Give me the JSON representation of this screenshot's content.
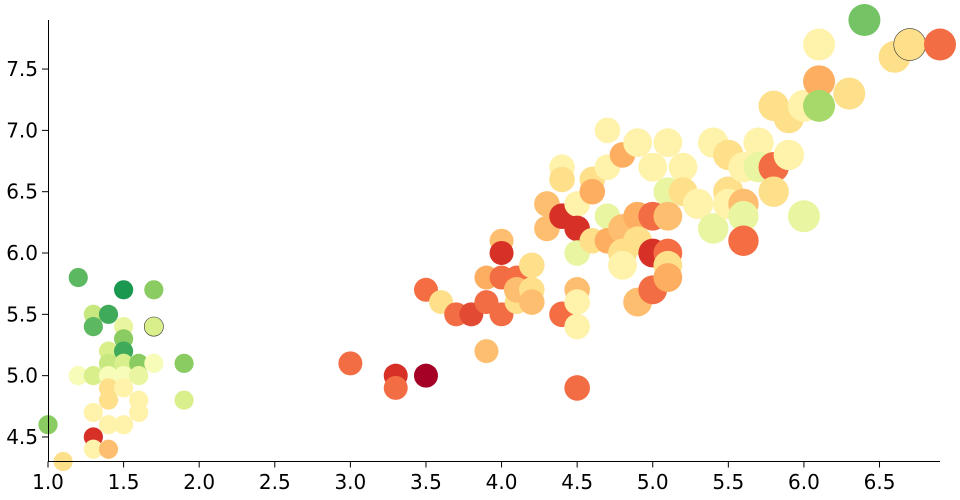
{
  "chart_data": {
    "type": "scatter",
    "title": "",
    "xlabel": "",
    "ylabel": "",
    "xlim": [
      1.0,
      6.9
    ],
    "ylim": [
      4.3,
      7.9
    ],
    "x_ticks": [
      "1.0",
      "1.5",
      "2.0",
      "2.5",
      "3.0",
      "3.5",
      "4.0",
      "4.5",
      "5.0",
      "5.5",
      "6.0",
      "6.5"
    ],
    "y_ticks": [
      "4.5",
      "5.0",
      "5.5",
      "6.0",
      "6.5",
      "7.0",
      "7.5"
    ],
    "grid": false,
    "legend": "none",
    "encoding": {
      "x": "x",
      "y": "y",
      "size": "size (relative value shown by marker radius)",
      "color": "color (diverging red-yellow-green scale)"
    },
    "points": [
      {
        "x": 1.0,
        "y": 4.6,
        "s": 0.6,
        "c": "#8acc62"
      },
      {
        "x": 1.1,
        "y": 4.3,
        "s": 0.6,
        "c": "#fee08b"
      },
      {
        "x": 1.2,
        "y": 5.8,
        "s": 0.6,
        "c": "#5db961"
      },
      {
        "x": 1.2,
        "y": 5.0,
        "s": 0.6,
        "c": "#f7fcb9"
      },
      {
        "x": 1.3,
        "y": 5.5,
        "s": 0.6,
        "c": "#c7e77f"
      },
      {
        "x": 1.3,
        "y": 5.4,
        "s": 0.6,
        "c": "#5db961"
      },
      {
        "x": 1.3,
        "y": 5.0,
        "s": 0.6,
        "c": "#d9ef8b"
      },
      {
        "x": 1.3,
        "y": 4.7,
        "s": 0.6,
        "c": "#fff2aa"
      },
      {
        "x": 1.3,
        "y": 4.5,
        "s": 0.6,
        "c": "#d73027"
      },
      {
        "x": 1.3,
        "y": 4.4,
        "s": 0.6,
        "c": "#fff2aa"
      },
      {
        "x": 1.4,
        "y": 5.5,
        "s": 0.6,
        "c": "#3faa59"
      },
      {
        "x": 1.4,
        "y": 5.2,
        "s": 0.6,
        "c": "#d9ef8b"
      },
      {
        "x": 1.4,
        "y": 5.1,
        "s": 0.6,
        "c": "#c7e77f"
      },
      {
        "x": 1.4,
        "y": 5.0,
        "s": 0.6,
        "c": "#f7fcb9"
      },
      {
        "x": 1.4,
        "y": 4.9,
        "s": 0.6,
        "c": "#fee08b"
      },
      {
        "x": 1.4,
        "y": 4.8,
        "s": 0.6,
        "c": "#fee08b"
      },
      {
        "x": 1.4,
        "y": 4.6,
        "s": 0.6,
        "c": "#fff2aa"
      },
      {
        "x": 1.4,
        "y": 4.4,
        "s": 0.6,
        "c": "#fdbf6f"
      },
      {
        "x": 1.5,
        "y": 5.7,
        "s": 0.6,
        "c": "#1a9850"
      },
      {
        "x": 1.5,
        "y": 5.4,
        "s": 0.6,
        "c": "#e9f5a0"
      },
      {
        "x": 1.5,
        "y": 5.3,
        "s": 0.6,
        "c": "#8acc62"
      },
      {
        "x": 1.5,
        "y": 5.2,
        "s": 0.6,
        "c": "#3faa59"
      },
      {
        "x": 1.5,
        "y": 5.1,
        "s": 0.6,
        "c": "#5db961"
      },
      {
        "x": 1.5,
        "y": 5.1,
        "s": 0.6,
        "c": "#d9ef8b"
      },
      {
        "x": 1.5,
        "y": 5.0,
        "s": 0.6,
        "c": "#f7fcb9"
      },
      {
        "x": 1.5,
        "y": 4.9,
        "s": 0.6,
        "c": "#fff2aa"
      },
      {
        "x": 1.5,
        "y": 4.6,
        "s": 0.6,
        "c": "#fff2aa"
      },
      {
        "x": 1.6,
        "y": 5.1,
        "s": 0.6,
        "c": "#8acc62"
      },
      {
        "x": 1.6,
        "y": 5.0,
        "s": 0.6,
        "c": "#e9f5a0"
      },
      {
        "x": 1.6,
        "y": 4.8,
        "s": 0.6,
        "c": "#fff2aa"
      },
      {
        "x": 1.6,
        "y": 4.7,
        "s": 0.6,
        "c": "#fff2aa"
      },
      {
        "x": 1.7,
        "y": 5.7,
        "s": 0.6,
        "c": "#8acc62"
      },
      {
        "x": 1.7,
        "y": 5.4,
        "s": 0.6,
        "c": "#d9ef8b",
        "outline": true
      },
      {
        "x": 1.7,
        "y": 5.1,
        "s": 0.6,
        "c": "#f7fcb9"
      },
      {
        "x": 1.9,
        "y": 5.1,
        "s": 0.6,
        "c": "#8acc62"
      },
      {
        "x": 1.9,
        "y": 4.8,
        "s": 0.6,
        "c": "#d9ef8b"
      },
      {
        "x": 3.0,
        "y": 5.1,
        "s": 0.75,
        "c": "#f26d43"
      },
      {
        "x": 3.3,
        "y": 5.0,
        "s": 0.75,
        "c": "#d73027"
      },
      {
        "x": 3.3,
        "y": 4.9,
        "s": 0.75,
        "c": "#f26d43"
      },
      {
        "x": 3.5,
        "y": 5.0,
        "s": 0.75,
        "c": "#a50026"
      },
      {
        "x": 3.5,
        "y": 5.7,
        "s": 0.75,
        "c": "#f46d43"
      },
      {
        "x": 3.6,
        "y": 5.6,
        "s": 0.75,
        "c": "#fee08b"
      },
      {
        "x": 3.7,
        "y": 5.5,
        "s": 0.75,
        "c": "#f26d43"
      },
      {
        "x": 3.8,
        "y": 5.5,
        "s": 0.75,
        "c": "#e34a33"
      },
      {
        "x": 3.9,
        "y": 5.8,
        "s": 0.75,
        "c": "#fdae61"
      },
      {
        "x": 3.9,
        "y": 5.6,
        "s": 0.75,
        "c": "#f26d43"
      },
      {
        "x": 3.9,
        "y": 5.2,
        "s": 0.75,
        "c": "#fdbf6f"
      },
      {
        "x": 4.0,
        "y": 6.1,
        "s": 0.75,
        "c": "#fdbf6f"
      },
      {
        "x": 4.0,
        "y": 6.0,
        "s": 0.75,
        "c": "#d73027"
      },
      {
        "x": 4.0,
        "y": 5.8,
        "s": 0.75,
        "c": "#f26d43"
      },
      {
        "x": 4.0,
        "y": 5.5,
        "s": 0.75,
        "c": "#f26d43"
      },
      {
        "x": 4.1,
        "y": 5.8,
        "s": 0.75,
        "c": "#f46d43"
      },
      {
        "x": 4.1,
        "y": 5.6,
        "s": 0.75,
        "c": "#fee08b"
      },
      {
        "x": 4.1,
        "y": 5.7,
        "s": 0.8,
        "c": "#fdbf6f"
      },
      {
        "x": 4.2,
        "y": 5.9,
        "s": 0.8,
        "c": "#fee08b"
      },
      {
        "x": 4.2,
        "y": 5.7,
        "s": 0.8,
        "c": "#fee08b"
      },
      {
        "x": 4.2,
        "y": 5.6,
        "s": 0.8,
        "c": "#fdbf6f"
      },
      {
        "x": 4.3,
        "y": 6.4,
        "s": 0.8,
        "c": "#fdbf6f"
      },
      {
        "x": 4.3,
        "y": 6.2,
        "s": 0.8,
        "c": "#fdbf6f"
      },
      {
        "x": 4.4,
        "y": 6.7,
        "s": 0.8,
        "c": "#fff2aa"
      },
      {
        "x": 4.4,
        "y": 6.6,
        "s": 0.8,
        "c": "#fee08b"
      },
      {
        "x": 4.4,
        "y": 6.3,
        "s": 0.8,
        "c": "#d73027"
      },
      {
        "x": 4.4,
        "y": 5.5,
        "s": 0.8,
        "c": "#f46d43"
      },
      {
        "x": 4.5,
        "y": 6.4,
        "s": 0.8,
        "c": "#fff2aa"
      },
      {
        "x": 4.5,
        "y": 6.2,
        "s": 0.8,
        "c": "#d73027"
      },
      {
        "x": 4.5,
        "y": 6.0,
        "s": 0.8,
        "c": "#e9f5a0"
      },
      {
        "x": 4.5,
        "y": 5.7,
        "s": 0.8,
        "c": "#fdbf6f"
      },
      {
        "x": 4.5,
        "y": 5.6,
        "s": 0.8,
        "c": "#fff2aa"
      },
      {
        "x": 4.5,
        "y": 5.4,
        "s": 0.8,
        "c": "#fff2aa"
      },
      {
        "x": 4.5,
        "y": 4.9,
        "s": 0.8,
        "c": "#f26d43"
      },
      {
        "x": 4.6,
        "y": 6.6,
        "s": 0.8,
        "c": "#fee08b"
      },
      {
        "x": 4.6,
        "y": 6.5,
        "s": 0.8,
        "c": "#fdae61"
      },
      {
        "x": 4.6,
        "y": 6.1,
        "s": 0.8,
        "c": "#fee08b"
      },
      {
        "x": 4.7,
        "y": 7.0,
        "s": 0.8,
        "c": "#fff2aa"
      },
      {
        "x": 4.7,
        "y": 6.7,
        "s": 0.8,
        "c": "#fff2aa"
      },
      {
        "x": 4.7,
        "y": 6.3,
        "s": 0.8,
        "c": "#e9f5a0"
      },
      {
        "x": 4.7,
        "y": 6.1,
        "s": 0.8,
        "c": "#fdae61"
      },
      {
        "x": 4.8,
        "y": 6.8,
        "s": 0.8,
        "c": "#fdae61"
      },
      {
        "x": 4.8,
        "y": 6.2,
        "s": 0.9,
        "c": "#fdbf6f"
      },
      {
        "x": 4.8,
        "y": 6.0,
        "s": 0.9,
        "c": "#fee08b"
      },
      {
        "x": 4.8,
        "y": 5.9,
        "s": 0.9,
        "c": "#fff2aa"
      },
      {
        "x": 4.9,
        "y": 6.9,
        "s": 0.9,
        "c": "#fff2aa"
      },
      {
        "x": 4.9,
        "y": 6.3,
        "s": 0.9,
        "c": "#fdae61"
      },
      {
        "x": 4.9,
        "y": 6.1,
        "s": 0.9,
        "c": "#fee08b"
      },
      {
        "x": 4.9,
        "y": 5.6,
        "s": 0.9,
        "c": "#fdbf6f"
      },
      {
        "x": 5.0,
        "y": 6.7,
        "s": 0.9,
        "c": "#fff2aa"
      },
      {
        "x": 5.0,
        "y": 6.3,
        "s": 0.9,
        "c": "#f26d43"
      },
      {
        "x": 5.0,
        "y": 6.0,
        "s": 0.9,
        "c": "#d73027"
      },
      {
        "x": 5.0,
        "y": 5.7,
        "s": 0.9,
        "c": "#f26d43"
      },
      {
        "x": 5.1,
        "y": 6.9,
        "s": 0.9,
        "c": "#fff2aa"
      },
      {
        "x": 5.1,
        "y": 6.5,
        "s": 0.9,
        "c": "#e9f5a0"
      },
      {
        "x": 5.1,
        "y": 6.3,
        "s": 0.9,
        "c": "#fdbf6f"
      },
      {
        "x": 5.1,
        "y": 6.0,
        "s": 0.9,
        "c": "#f46d43"
      },
      {
        "x": 5.1,
        "y": 5.9,
        "s": 0.9,
        "c": "#fee08b"
      },
      {
        "x": 5.1,
        "y": 5.8,
        "s": 0.9,
        "c": "#fdae61"
      },
      {
        "x": 5.2,
        "y": 6.7,
        "s": 0.9,
        "c": "#fff2aa"
      },
      {
        "x": 5.2,
        "y": 6.5,
        "s": 0.9,
        "c": "#fee08b"
      },
      {
        "x": 5.3,
        "y": 6.4,
        "s": 0.95,
        "c": "#fff2aa"
      },
      {
        "x": 5.4,
        "y": 6.9,
        "s": 0.95,
        "c": "#fff2aa"
      },
      {
        "x": 5.4,
        "y": 6.2,
        "s": 0.95,
        "c": "#e9f5a0"
      },
      {
        "x": 5.5,
        "y": 6.8,
        "s": 0.95,
        "c": "#fee08b"
      },
      {
        "x": 5.5,
        "y": 6.5,
        "s": 0.95,
        "c": "#fee08b"
      },
      {
        "x": 5.5,
        "y": 6.4,
        "s": 0.95,
        "c": "#fff2aa"
      },
      {
        "x": 5.6,
        "y": 6.7,
        "s": 0.95,
        "c": "#fff2aa"
      },
      {
        "x": 5.6,
        "y": 6.4,
        "s": 0.95,
        "c": "#fdbf6f"
      },
      {
        "x": 5.6,
        "y": 6.3,
        "s": 0.95,
        "c": "#e9f5a0"
      },
      {
        "x": 5.6,
        "y": 6.1,
        "s": 0.95,
        "c": "#f46d43"
      },
      {
        "x": 5.7,
        "y": 6.9,
        "s": 0.95,
        "c": "#fff2aa"
      },
      {
        "x": 5.7,
        "y": 6.7,
        "s": 0.95,
        "c": "#e9f5a0"
      },
      {
        "x": 5.8,
        "y": 7.2,
        "s": 0.95,
        "c": "#fee08b"
      },
      {
        "x": 5.8,
        "y": 6.7,
        "s": 0.95,
        "c": "#f26d43"
      },
      {
        "x": 5.8,
        "y": 6.5,
        "s": 0.95,
        "c": "#fee08b"
      },
      {
        "x": 5.9,
        "y": 7.1,
        "s": 0.95,
        "c": "#fee08b"
      },
      {
        "x": 5.9,
        "y": 6.8,
        "s": 0.95,
        "c": "#fff2aa"
      },
      {
        "x": 6.0,
        "y": 7.2,
        "s": 1.0,
        "c": "#fff2aa"
      },
      {
        "x": 6.0,
        "y": 6.3,
        "s": 1.0,
        "c": "#e9f5a0"
      },
      {
        "x": 6.1,
        "y": 7.7,
        "s": 1.0,
        "c": "#fff2aa"
      },
      {
        "x": 6.1,
        "y": 7.4,
        "s": 1.0,
        "c": "#fdae61"
      },
      {
        "x": 6.1,
        "y": 7.2,
        "s": 1.0,
        "c": "#a6d96a"
      },
      {
        "x": 6.3,
        "y": 7.3,
        "s": 1.0,
        "c": "#fee08b"
      },
      {
        "x": 6.4,
        "y": 7.9,
        "s": 1.0,
        "c": "#74c365"
      },
      {
        "x": 6.6,
        "y": 7.6,
        "s": 1.0,
        "c": "#fee08b"
      },
      {
        "x": 6.7,
        "y": 7.7,
        "s": 1.0,
        "c": "#fee08b",
        "outline": true
      },
      {
        "x": 6.9,
        "y": 7.7,
        "s": 1.0,
        "c": "#f26d43"
      }
    ]
  }
}
